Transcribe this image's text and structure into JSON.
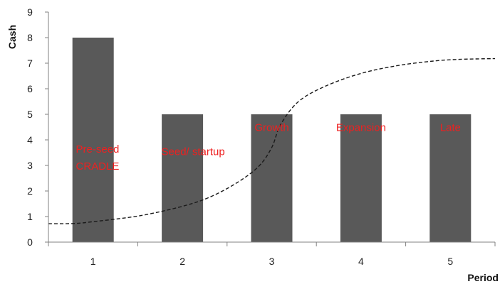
{
  "chart_data": {
    "type": "bar",
    "title": "",
    "xlabel": "Period",
    "ylabel": "Cash",
    "categories": [
      "1",
      "2",
      "3",
      "4",
      "5"
    ],
    "series": [
      {
        "values": [
          8,
          5,
          5,
          5,
          5
        ]
      }
    ],
    "curve": {
      "style": "dashed",
      "points": [
        [
          0.5,
          0.72
        ],
        [
          0.8,
          0.73
        ],
        [
          1.0,
          0.8
        ],
        [
          1.3,
          0.92
        ],
        [
          1.6,
          1.08
        ],
        [
          2.0,
          1.4
        ],
        [
          2.3,
          1.75
        ],
        [
          2.6,
          2.3
        ],
        [
          2.85,
          2.95
        ],
        [
          3.0,
          3.7
        ],
        [
          3.1,
          4.6
        ],
        [
          3.3,
          5.5
        ],
        [
          3.6,
          6.1
        ],
        [
          4.0,
          6.6
        ],
        [
          4.4,
          6.9
        ],
        [
          4.8,
          7.08
        ],
        [
          5.1,
          7.15
        ],
        [
          5.5,
          7.18
        ]
      ]
    },
    "stage_labels": [
      {
        "lines": [
          "Pre-seed",
          "CRADLE"
        ],
        "x": 1.05,
        "y": 3.5
      },
      {
        "lines": [
          "Seed/ startup"
        ],
        "x": 2.12,
        "y": 3.4
      },
      {
        "lines": [
          "Growth"
        ],
        "x": 3.0,
        "y": 4.35
      },
      {
        "lines": [
          "Expansion"
        ],
        "x": 4.0,
        "y": 4.35
      },
      {
        "lines": [
          "Late"
        ],
        "x": 5.0,
        "y": 4.35
      }
    ],
    "ylim": [
      0,
      9
    ],
    "yticks": [
      0,
      1,
      2,
      3,
      4,
      5,
      6,
      7,
      8,
      9
    ],
    "xlim": [
      0.5,
      5.5
    ],
    "grid": false,
    "legend": "none",
    "colors": {
      "bar": "#595959",
      "axis": "#808080",
      "curve": "#1a1a1a",
      "stage_label": "#ee2020"
    }
  }
}
